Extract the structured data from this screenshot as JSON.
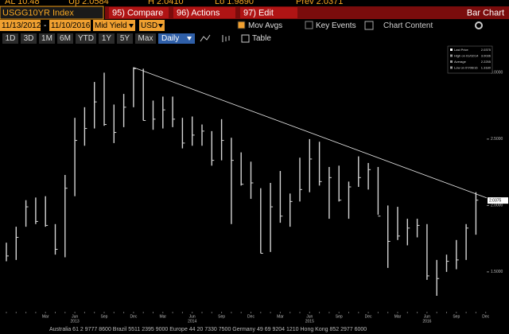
{
  "quote_bar": {
    "items": [
      "AL 10.48",
      "Up 2.0584",
      "H 2.0410",
      "Lo 1.9890",
      "Prev 2.0371"
    ]
  },
  "toolbar": {
    "ticker": "USGG10YR Index",
    "buttons": [
      "95) Compare",
      "96) Actions",
      "97) Edit"
    ],
    "view": "Bar Chart",
    "start_date": "11/13/2012",
    "separator": "-",
    "end_date": "11/10/2016",
    "field": "Mid Yield",
    "currency": "USD",
    "options": [
      "Mov Avgs",
      "Key Events"
    ],
    "content": "Chart Content",
    "periods": [
      "1D",
      "3D",
      "1M",
      "6M",
      "YTD",
      "1Y",
      "5Y",
      "Max"
    ],
    "frequency": "Daily",
    "table": "Table"
  },
  "footer": "Australia 61 2 9777 8600 Brazil 5511 2395 9000 Europe 44 20 7330 7500 Germany 49 69 9204 1210 Hong Kong 852 2977 6000",
  "chart_data": {
    "type": "hlc",
    "categories": [
      null,
      null,
      null,
      null,
      "Mar",
      null,
      null,
      "Jun",
      null,
      null,
      "Sep",
      null,
      null,
      "Dec",
      null,
      null,
      "Mar",
      null,
      null,
      "Jun",
      null,
      null,
      "Sep",
      null,
      null,
      "Dec",
      null,
      null,
      "Mar",
      null,
      null,
      "Jun",
      null,
      null,
      "Sep",
      null,
      null,
      "Dec",
      null,
      null,
      "Mar",
      null,
      null,
      "Jun",
      null,
      null,
      "Sep",
      null,
      null,
      "Dec"
    ],
    "years": [
      null,
      null,
      null,
      null,
      null,
      null,
      null,
      "2013",
      null,
      null,
      null,
      null,
      null,
      null,
      null,
      null,
      null,
      null,
      null,
      "2014",
      null,
      null,
      null,
      null,
      null,
      null,
      null,
      null,
      null,
      null,
      null,
      "2015",
      null,
      null,
      null,
      null,
      null,
      null,
      null,
      null,
      null,
      null,
      null,
      "2016",
      null,
      null,
      null,
      null,
      null
    ],
    "high": [
      1.72,
      1.84,
      2.04,
      2.06,
      2.07,
      1.86,
      2.23,
      2.66,
      2.74,
      2.93,
      3.0,
      2.76,
      2.84,
      3.04,
      3.03,
      2.79,
      2.82,
      2.82,
      2.66,
      2.67,
      2.61,
      2.56,
      2.65,
      2.51,
      2.4,
      2.33,
      2.13,
      2.17,
      2.26,
      2.09,
      2.36,
      2.5,
      2.48,
      2.29,
      2.3,
      2.18,
      2.37,
      2.32,
      2.29,
      2.0,
      1.99,
      1.9,
      1.9,
      1.86,
      1.59,
      1.63,
      1.74,
      1.86,
      2.1
    ],
    "low": [
      1.58,
      1.59,
      1.84,
      1.86,
      1.84,
      1.63,
      1.61,
      2.07,
      2.45,
      2.58,
      2.6,
      2.47,
      2.59,
      2.74,
      2.64,
      2.57,
      2.58,
      2.59,
      2.43,
      2.45,
      2.45,
      2.3,
      2.34,
      1.86,
      2.15,
      2.05,
      1.64,
      1.65,
      1.87,
      1.84,
      2.03,
      2.1,
      2.15,
      1.9,
      2.03,
      1.9,
      2.14,
      2.12,
      1.93,
      1.53,
      1.74,
      1.7,
      1.76,
      1.44,
      1.32,
      1.5,
      1.52,
      1.59,
      1.78
    ],
    "close": [
      1.62,
      1.76,
      1.99,
      1.88,
      1.85,
      1.67,
      2.13,
      2.49,
      2.58,
      2.78,
      2.61,
      2.55,
      2.74,
      3.03,
      2.64,
      2.65,
      2.72,
      2.65,
      2.47,
      2.53,
      2.56,
      2.34,
      2.49,
      2.34,
      2.16,
      2.17,
      1.64,
      1.99,
      1.92,
      2.03,
      2.12,
      2.35,
      2.18,
      2.21,
      2.04,
      2.14,
      2.21,
      2.27,
      1.92,
      1.73,
      1.77,
      1.83,
      1.85,
      1.47,
      1.45,
      1.58,
      1.59,
      1.83,
      2.04
    ],
    "color": "#d4d4d4",
    "ylim": [
      1.2,
      3.2
    ],
    "yticks": [
      {
        "value": 1.5,
        "label": "1.5000"
      },
      {
        "value": 2.0,
        "label": "2.0000"
      },
      {
        "value": 2.5,
        "label": "2.5000"
      },
      {
        "value": 3.0,
        "label": "3.0000"
      }
    ],
    "last_value": 2.0375,
    "trendline": [
      3.04,
      2.06
    ],
    "legend": [
      {
        "label": "Last Price",
        "value": "2.0375"
      },
      {
        "label": "High on 01/02/14",
        "value": "3.0036"
      },
      {
        "label": "Average",
        "value": "2.2255"
      },
      {
        "label": "Low on 07/06/16",
        "value": "1.3180"
      }
    ]
  }
}
